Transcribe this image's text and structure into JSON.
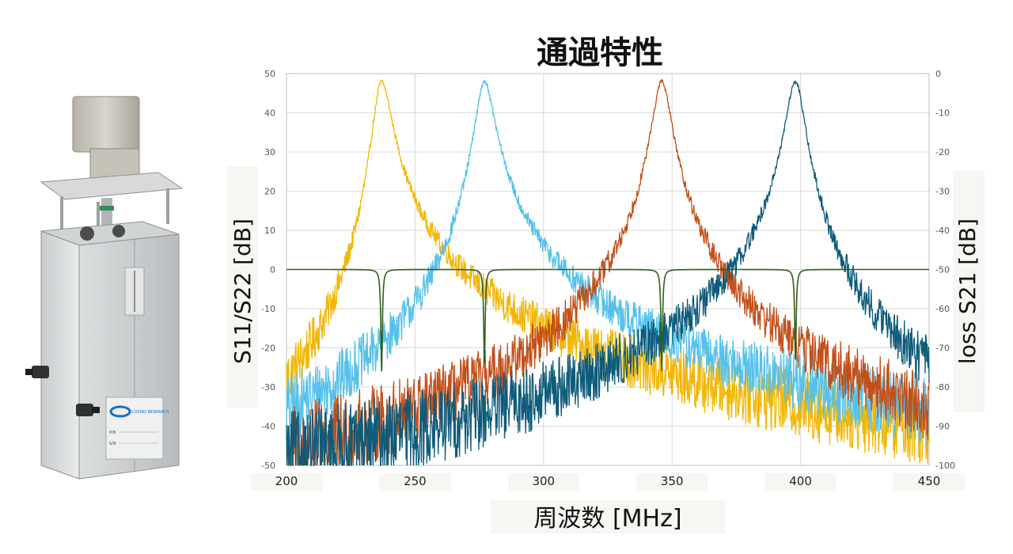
{
  "chart_data": {
    "type": "line",
    "title": "通過特性",
    "xlabel": "周波数 [MHz]",
    "ylabel_left": "S11/S22 [dB]",
    "ylabel_right": "loss S21 [dB]",
    "xlim": [
      200,
      450
    ],
    "ylim_left": [
      -50,
      50
    ],
    "ylim_right": [
      -100,
      0
    ],
    "x_ticks": [
      "200",
      "250",
      "300",
      "350",
      "400",
      "450"
    ],
    "y_left_ticks": [
      "50",
      "40",
      "30",
      "20",
      "10",
      "0",
      "-10",
      "-20",
      "-30",
      "-40",
      "-50"
    ],
    "y_right_ticks": [
      "0",
      "-10",
      "-20",
      "-30",
      "-40",
      "-50",
      "-60",
      "-70",
      "-80",
      "-90",
      "-100"
    ],
    "grid": true,
    "series": [
      {
        "color": "#f2b705",
        "peak_freq": 237,
        "peak_db": 48,
        "low_end_db": -28,
        "high_end_db": -40
      },
      {
        "color": "#55c1ea",
        "peak_freq": 277,
        "peak_db": 48,
        "low_end_db": -36,
        "high_end_db": -36
      },
      {
        "color": "#c2501a",
        "peak_freq": 346,
        "peak_db": 48,
        "low_end_db": -46,
        "high_end_db": -35
      },
      {
        "color": "#0e5b7a",
        "peak_freq": 398,
        "peak_db": 48,
        "low_end_db": -48,
        "high_end_db": -24
      }
    ],
    "s21": {
      "color": "#2f5f1a",
      "baseline_db": -50,
      "notches": [
        {
          "freq": 237,
          "depth_db": -76
        },
        {
          "freq": 277,
          "depth_db": -74
        },
        {
          "freq": 346,
          "depth_db": -76
        },
        {
          "freq": 398,
          "depth_db": -73
        }
      ]
    }
  },
  "product": {
    "brand_label": "COSMO RESEARCH",
    "plate_lines": [
      "P/N",
      "S/N"
    ]
  }
}
